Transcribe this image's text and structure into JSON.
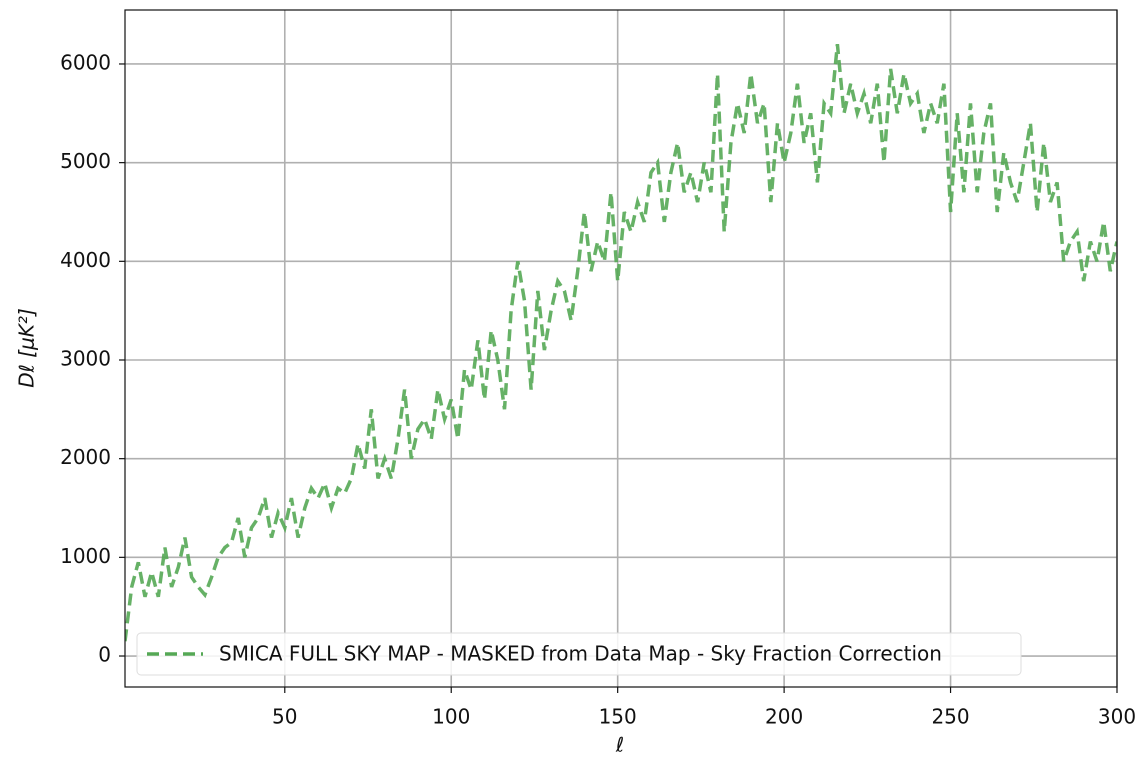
{
  "chart_data": {
    "type": "line",
    "x_label": "ℓ",
    "y_label": "Dℓ [μK²]",
    "x": [
      2,
      4,
      6,
      8,
      10,
      12,
      14,
      16,
      18,
      20,
      22,
      24,
      26,
      28,
      30,
      32,
      34,
      36,
      38,
      40,
      42,
      44,
      46,
      48,
      50,
      52,
      54,
      56,
      58,
      60,
      62,
      64,
      66,
      68,
      70,
      72,
      74,
      76,
      78,
      80,
      82,
      84,
      86,
      88,
      90,
      92,
      94,
      96,
      98,
      100,
      102,
      104,
      106,
      108,
      110,
      112,
      114,
      116,
      118,
      120,
      122,
      124,
      126,
      128,
      130,
      132,
      134,
      136,
      138,
      140,
      142,
      144,
      146,
      148,
      150,
      152,
      154,
      156,
      158,
      160,
      162,
      164,
      166,
      168,
      170,
      172,
      174,
      176,
      178,
      180,
      182,
      184,
      186,
      188,
      190,
      192,
      194,
      196,
      198,
      200,
      202,
      204,
      206,
      208,
      210,
      212,
      214,
      216,
      218,
      220,
      222,
      224,
      226,
      228,
      230,
      232,
      234,
      236,
      238,
      240,
      242,
      244,
      246,
      248,
      250,
      252,
      254,
      256,
      258,
      260,
      262,
      264,
      266,
      268,
      270,
      272,
      274,
      276,
      278,
      280,
      282,
      284,
      286,
      288,
      290,
      292,
      294,
      296,
      298,
      300
    ],
    "series": [
      {
        "name": "SMICA FULL SKY MAP - MASKED from Data Map - Sky Fraction Correction",
        "color": "#55a855",
        "values": [
          150,
          700,
          950,
          600,
          850,
          600,
          1100,
          700,
          900,
          1200,
          800,
          700,
          620,
          800,
          1000,
          1100,
          1150,
          1400,
          1000,
          1300,
          1400,
          1600,
          1200,
          1450,
          1300,
          1600,
          1200,
          1500,
          1700,
          1600,
          1750,
          1500,
          1700,
          1650,
          1800,
          2150,
          1900,
          2500,
          1800,
          2000,
          1800,
          2200,
          2700,
          2000,
          2300,
          2400,
          2200,
          2700,
          2400,
          2600,
          2200,
          2900,
          2700,
          3200,
          2600,
          3300,
          3000,
          2500,
          3500,
          4000,
          3600,
          2700,
          3700,
          3100,
          3500,
          3800,
          3700,
          3400,
          3900,
          4500,
          3900,
          4200,
          4000,
          4700,
          3800,
          4500,
          4300,
          4600,
          4400,
          4900,
          5000,
          4400,
          4900,
          5200,
          4700,
          4900,
          4600,
          5000,
          4700,
          5900,
          4300,
          5200,
          5600,
          5300,
          5900,
          5400,
          5600,
          4600,
          5400,
          5000,
          5300,
          5800,
          5200,
          5500,
          4800,
          5600,
          5500,
          6200,
          5500,
          5800,
          5500,
          5700,
          5400,
          5800,
          5000,
          5950,
          5500,
          5900,
          5600,
          5700,
          5300,
          5600,
          5400,
          5800,
          4500,
          5500,
          4700,
          5600,
          4700,
          5300,
          5600,
          4500,
          5100,
          4800,
          4600,
          5000,
          5400,
          4500,
          5200,
          4600,
          4800,
          4000,
          4200,
          4300,
          3800,
          4200,
          4000,
          4400,
          3900,
          4200
        ]
      }
    ],
    "xlim": [
      2,
      300
    ],
    "ylim": [
      -314,
      6547
    ],
    "xticks": [
      50,
      100,
      150,
      200,
      250,
      300
    ],
    "yticks": [
      0,
      1000,
      2000,
      3000,
      4000,
      5000,
      6000
    ],
    "grid": true,
    "legend": "lower left"
  }
}
